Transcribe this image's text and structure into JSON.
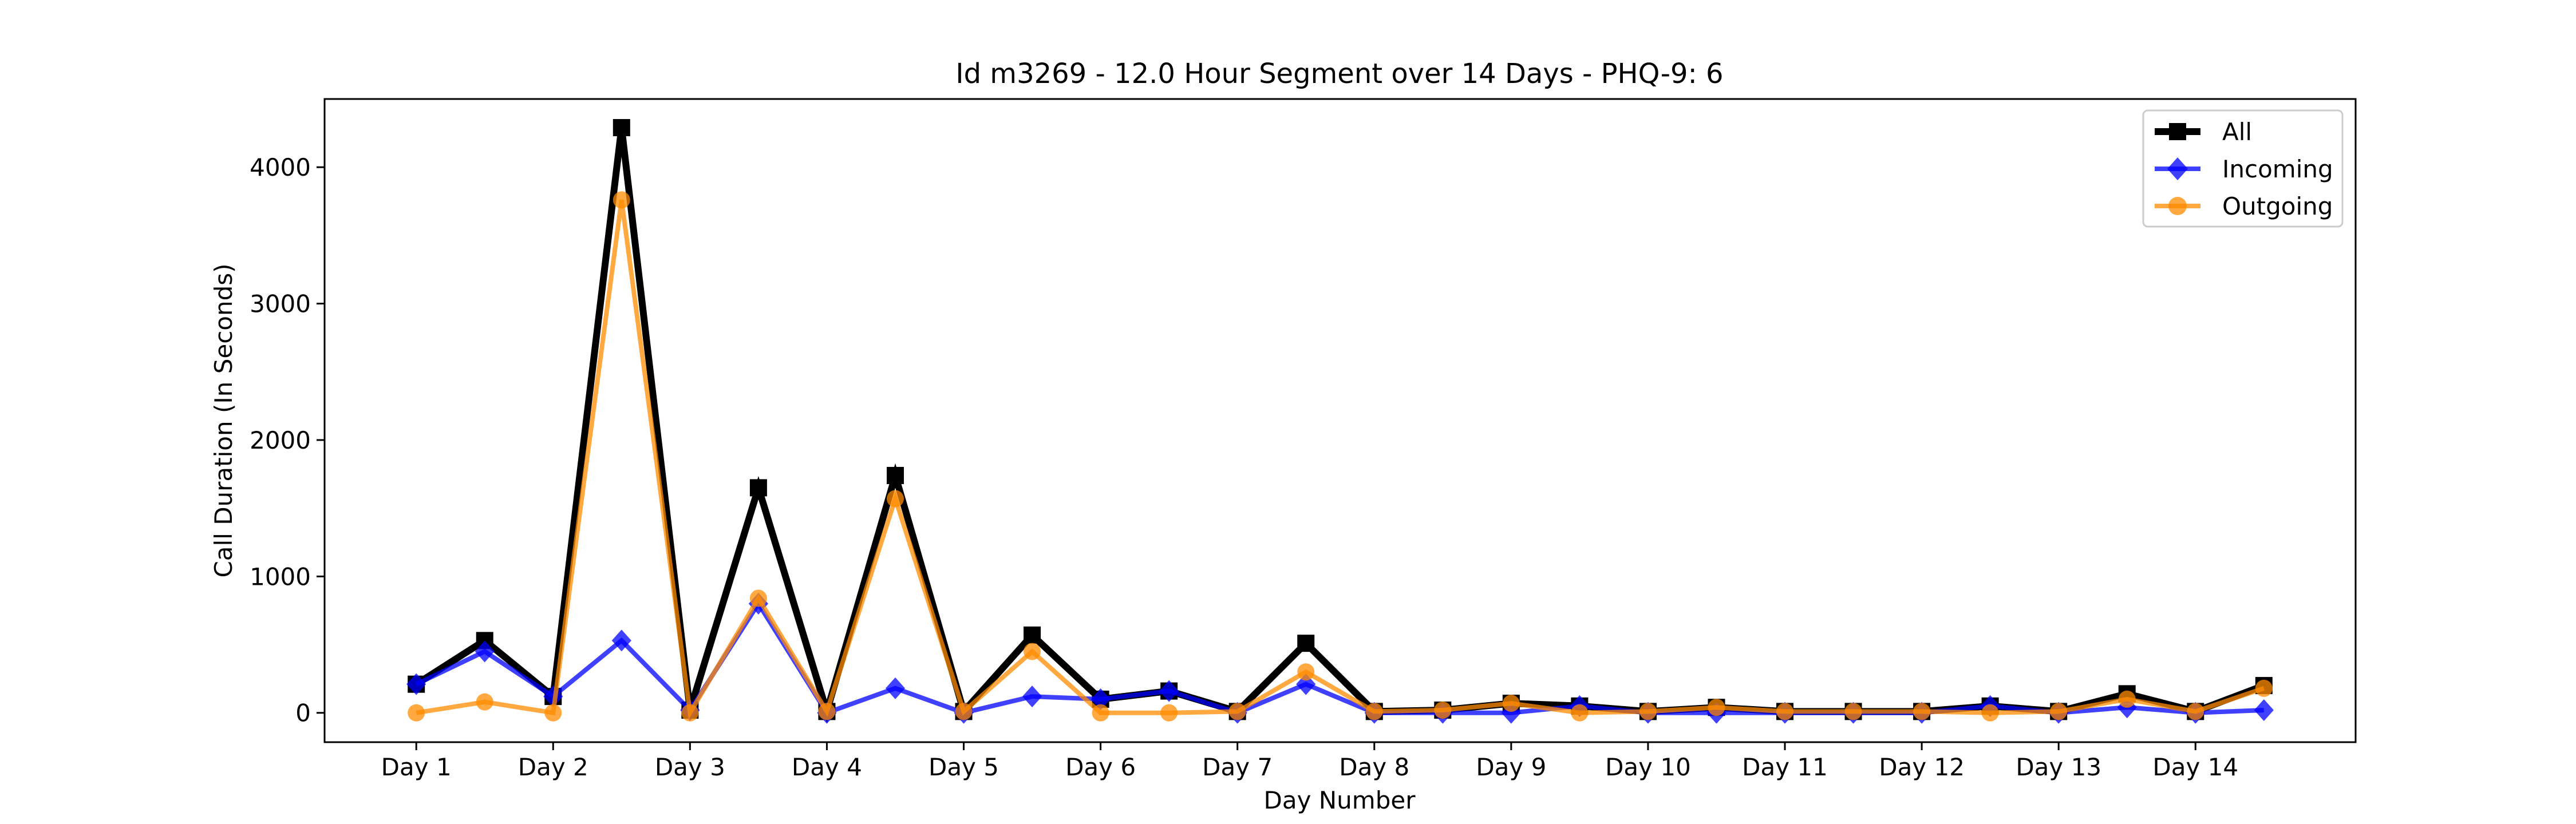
{
  "chart_data": {
    "type": "line",
    "title": "Id m3269 - 12.0 Hour Segment over 14 Days - PHQ-9: 6",
    "xlabel": "Day Number",
    "ylabel": "Call Duration (In Seconds)",
    "x": [
      1,
      1.5,
      2,
      2.5,
      3,
      3.5,
      4,
      4.5,
      5,
      5.5,
      6,
      6.5,
      7,
      7.5,
      8,
      8.5,
      9,
      9.5,
      10,
      10.5,
      11,
      11.5,
      12,
      12.5,
      13,
      13.5,
      14,
      14.5
    ],
    "xticks": [
      1,
      2,
      3,
      4,
      5,
      6,
      7,
      8,
      9,
      10,
      11,
      12,
      13,
      14
    ],
    "xtick_labels": [
      "Day 1",
      "Day 2",
      "Day 3",
      "Day 4",
      "Day 5",
      "Day 6",
      "Day 7",
      "Day 8",
      "Day 9",
      "Day 10",
      "Day 11",
      "Day 12",
      "Day 13",
      "Day 14"
    ],
    "xlim": [
      0.33,
      15.17
    ],
    "yticks": [
      0,
      1000,
      2000,
      3000,
      4000
    ],
    "ylim": [
      -215,
      4500
    ],
    "grid": false,
    "legend_position": "top-right",
    "series": [
      {
        "name": "All",
        "color": "#000000",
        "marker": "square",
        "values": [
          210,
          530,
          120,
          4290,
          20,
          1650,
          10,
          1740,
          10,
          570,
          100,
          160,
          10,
          510,
          10,
          20,
          70,
          50,
          10,
          40,
          10,
          10,
          10,
          50,
          10,
          140,
          10,
          200
        ]
      },
      {
        "name": "Incoming",
        "color": "#0000ff",
        "marker": "diamond",
        "values": [
          210,
          450,
          120,
          530,
          20,
          800,
          0,
          180,
          0,
          120,
          100,
          160,
          0,
          210,
          0,
          0,
          0,
          50,
          0,
          0,
          0,
          0,
          0,
          50,
          0,
          40,
          0,
          20
        ]
      },
      {
        "name": "Outgoing",
        "color": "#ff8c00",
        "marker": "circle",
        "values": [
          0,
          80,
          0,
          3760,
          0,
          840,
          10,
          1570,
          10,
          450,
          0,
          0,
          10,
          300,
          10,
          20,
          70,
          0,
          10,
          40,
          10,
          10,
          10,
          0,
          10,
          100,
          10,
          180
        ]
      }
    ]
  }
}
